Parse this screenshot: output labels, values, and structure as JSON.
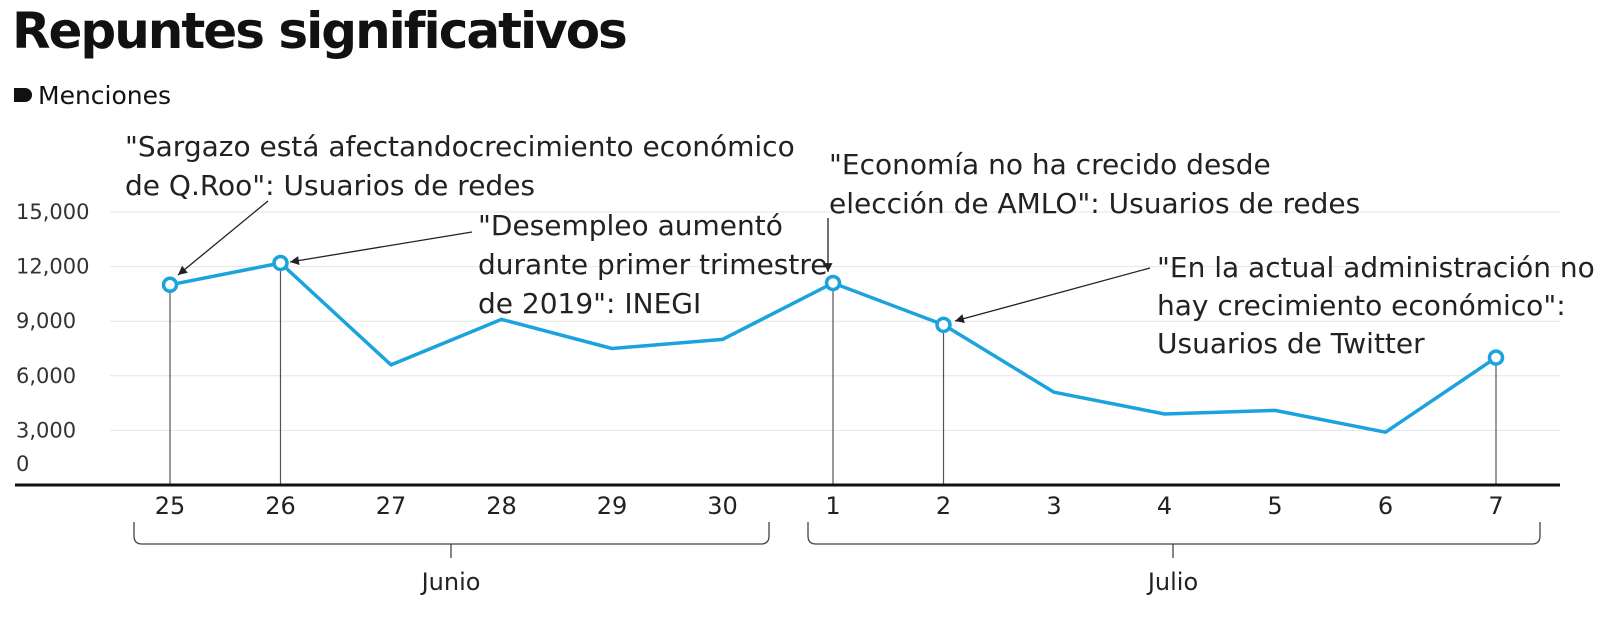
{
  "title": "Repuntes significativos",
  "legend": {
    "label": "Menciones"
  },
  "colors": {
    "line": "#1aa3dd",
    "axis": "#111111",
    "grid": "#e6e6e6",
    "leader": "#222222"
  },
  "chart_data": {
    "type": "line",
    "title": "Repuntes significativos",
    "categories": [
      "25",
      "26",
      "27",
      "28",
      "29",
      "30",
      "1",
      "2",
      "3",
      "4",
      "5",
      "6",
      "7"
    ],
    "series": [
      {
        "name": "Menciones",
        "values": [
          11000,
          12200,
          6600,
          9100,
          7500,
          8000,
          11100,
          8800,
          5100,
          3900,
          4100,
          2900,
          7000
        ]
      }
    ],
    "ylim": [
      0,
      15000
    ],
    "yticks": [
      0,
      3000,
      6000,
      9000,
      12000,
      15000
    ],
    "ytick_labels": [
      "0",
      "3,000",
      "6,000",
      "9,000",
      "12,000",
      "15,000"
    ],
    "xlabel": "",
    "ylabel": "",
    "groups": [
      {
        "label": "Junio",
        "from": 0,
        "to": 5
      },
      {
        "label": "Julio",
        "from": 6,
        "to": 12
      }
    ],
    "highlight": [
      0,
      1,
      6,
      7,
      12
    ],
    "annotations": [
      {
        "index": 0,
        "lines": [
          "\"Sargazo está afectandocrecimiento económico",
          "de Q.Roo\": Usuarios de redes"
        ]
      },
      {
        "index": 1,
        "lines": [
          "\"Desempleo aumentó",
          "durante primer trimestre",
          "de 2019\": INEGI"
        ]
      },
      {
        "index": 6,
        "lines": [
          "\"Economía no ha crecido desde",
          "elección de AMLO\": Usuarios de redes"
        ]
      },
      {
        "index": 7,
        "lines": [
          "\"En la actual administración no",
          " hay crecimiento económico\":",
          "Usuarios de Twitter"
        ]
      }
    ]
  }
}
